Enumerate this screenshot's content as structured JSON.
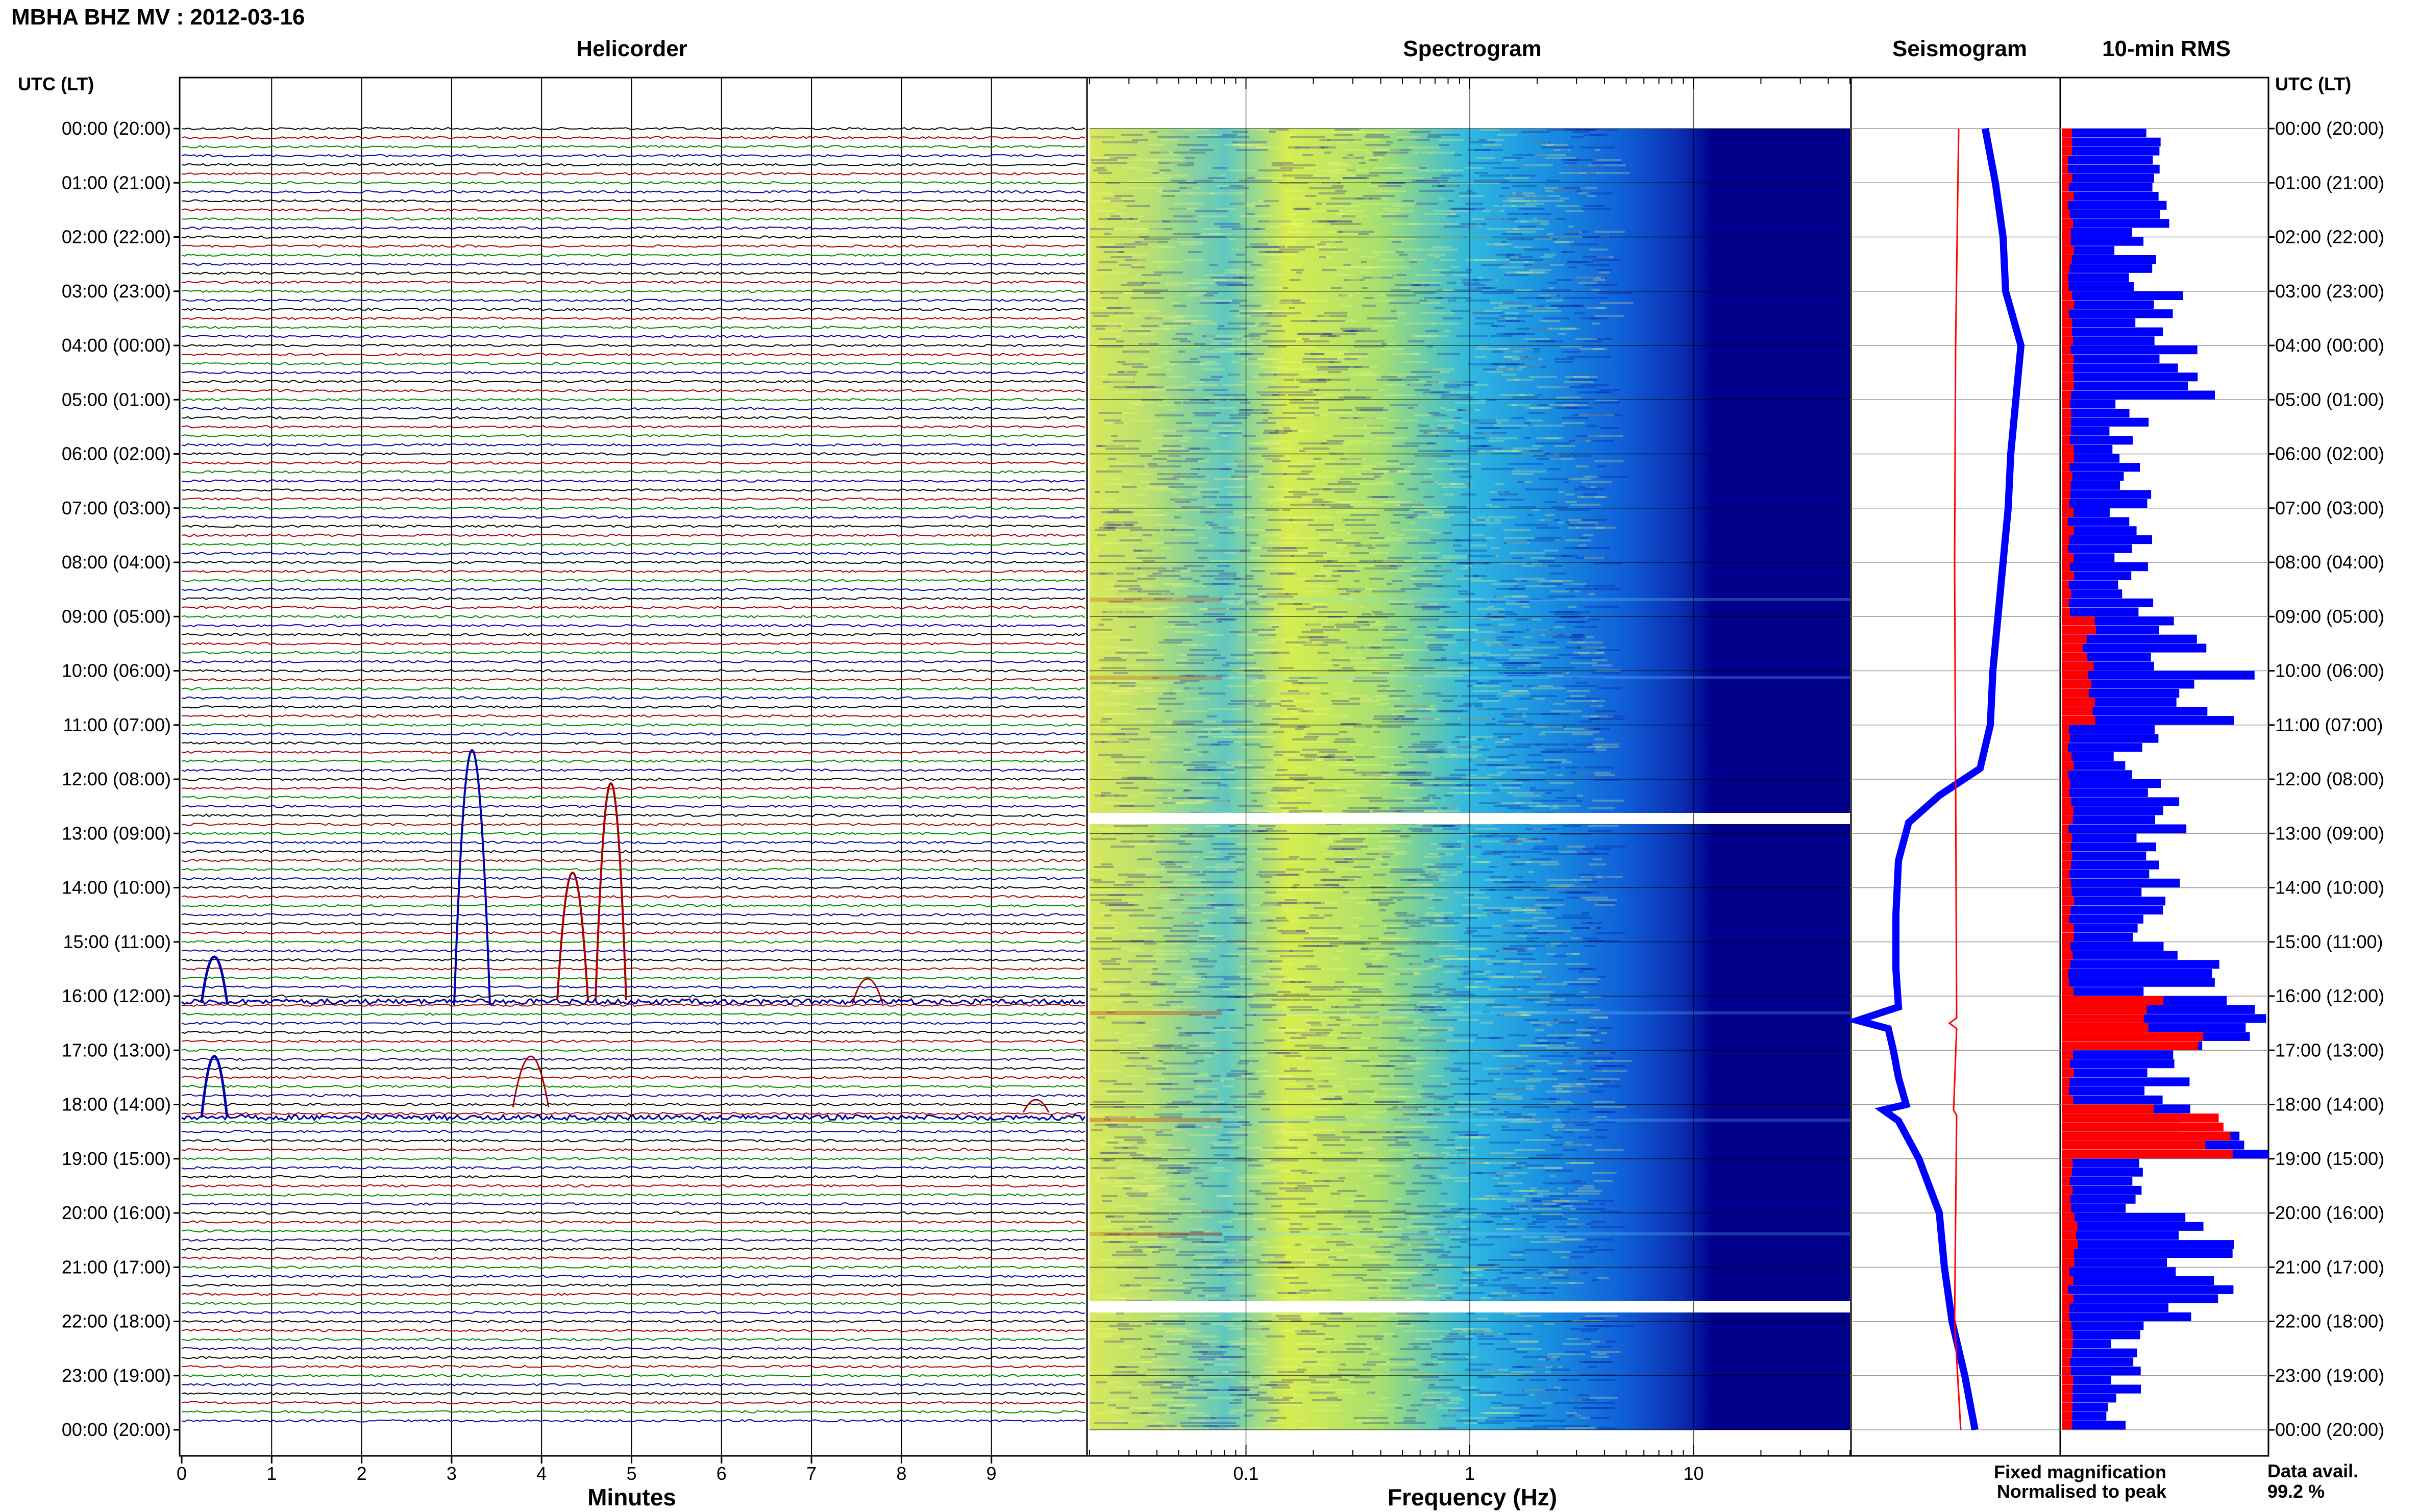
{
  "title": "MBHA BHZ MV : 2012-03-16",
  "panels": {
    "helicorder": "Helicorder",
    "spectrogram": "Spectrogram",
    "seismogram": "Seismogram",
    "rms": "10-min RMS"
  },
  "time_axis_header": "UTC (LT)",
  "time_labels": [
    "00:00 (20:00)",
    "01:00 (21:00)",
    "02:00 (22:00)",
    "03:00 (23:00)",
    "04:00 (00:00)",
    "05:00 (01:00)",
    "06:00 (02:00)",
    "07:00 (03:00)",
    "08:00 (04:00)",
    "09:00 (05:00)",
    "10:00 (06:00)",
    "11:00 (07:00)",
    "12:00 (08:00)",
    "13:00 (09:00)",
    "14:00 (10:00)",
    "15:00 (11:00)",
    "16:00 (12:00)",
    "17:00 (13:00)",
    "18:00 (14:00)",
    "19:00 (15:00)",
    "20:00 (16:00)",
    "21:00 (17:00)",
    "22:00 (18:00)",
    "23:00 (19:00)",
    "00:00 (20:00)"
  ],
  "x_axes": {
    "minutes": {
      "label": "Minutes",
      "ticks": [
        "0",
        "1",
        "2",
        "3",
        "4",
        "5",
        "6",
        "7",
        "8",
        "9"
      ]
    },
    "frequency": {
      "label": "Frequency (Hz)",
      "ticks": [
        "0.1",
        "1",
        "10"
      ]
    }
  },
  "legend": {
    "fixed": {
      "text": "Fixed magnification",
      "color": "#0000ff"
    },
    "normalised": {
      "text": "Normalised to peak",
      "color": "#ff0000"
    }
  },
  "data_avail": {
    "label": "Data avail.",
    "value": "99.2 %"
  },
  "colors": {
    "trace_cycle": [
      "#000000",
      "#aa0000",
      "#008800",
      "#0000aa"
    ],
    "rms_fixed": "#0000ff",
    "rms_norm": "#ff0000",
    "spec_low": "#00008b",
    "spec_high": "#ffff40"
  },
  "chart_data": {
    "type": "heatmap",
    "date": "2012-03-16",
    "station": "MBHA BHZ MV",
    "spectrogram": {
      "freq_range_hz": [
        0.02,
        50
      ],
      "scale": "log",
      "data_gaps_utc": [
        "12:40-12:50",
        "21:40-21:50"
      ]
    },
    "rms_10min_utc": {
      "times": [
        "00:00",
        "01:00",
        "02:00",
        "03:00",
        "04:00",
        "05:00",
        "06:00",
        "07:00",
        "08:00",
        "09:00",
        "10:00",
        "11:00",
        "12:00",
        "13:00",
        "14:00",
        "15:00",
        "16:00",
        "17:00",
        "18:00",
        "19:00",
        "20:00",
        "21:00",
        "22:00",
        "23:00"
      ],
      "fixed_magnification_relative": [
        0.45,
        0.55,
        0.45,
        0.6,
        0.75,
        0.4,
        0.45,
        0.4,
        0.45,
        0.65,
        0.9,
        0.45,
        0.6,
        0.55,
        0.5,
        0.7,
        0.95,
        0.6,
        0.95,
        0.45,
        0.8,
        0.85,
        0.4,
        0.35
      ],
      "normalised_relative": [
        0.05,
        0.05,
        0.05,
        0.05,
        0.05,
        0.05,
        0.05,
        0.05,
        0.05,
        0.15,
        0.2,
        0.05,
        0.05,
        0.05,
        0.05,
        0.05,
        0.65,
        0.05,
        0.7,
        0.05,
        0.07,
        0.05,
        0.05,
        0.05
      ]
    }
  }
}
